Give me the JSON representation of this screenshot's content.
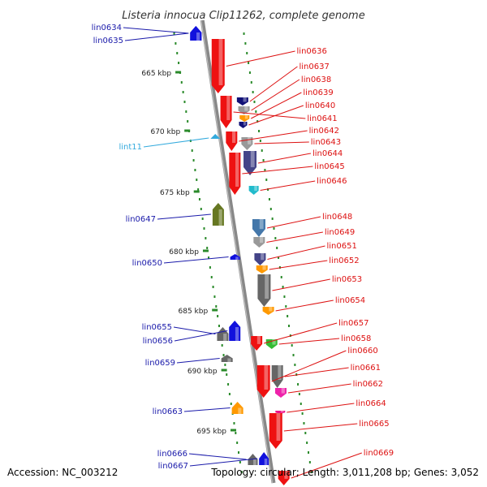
{
  "header": {
    "title": "Listeria innocua Clip11262, complete genome"
  },
  "footer": {
    "accession": "Accession: NC_003212",
    "summary": "Topology: circular; Length: 3,011,208 bp; Genes: 3,052"
  },
  "ticks": [
    "665 kbp",
    "670 kbp",
    "675 kbp",
    "680 kbp",
    "685 kbp",
    "690 kbp",
    "695 kbp"
  ],
  "colors": {
    "forward_label": "#1a1aaa",
    "reverse_label": "#dd1111",
    "rna_label": "#33aadd",
    "backbone": "#888888",
    "tick_mark": "#2a8a2a"
  },
  "genes_forward": [
    {
      "label": "lin0634",
      "color": "#1111dd"
    },
    {
      "label": "lin0635",
      "color": "#1111dd"
    },
    {
      "label": "lin0647",
      "color": "#667722"
    },
    {
      "label": "lin0650",
      "color": "#1111dd"
    },
    {
      "label": "lin0655",
      "color": "#666666"
    },
    {
      "label": "lin0656",
      "color": "#1111dd"
    },
    {
      "label": "lin0659",
      "color": "#666666"
    },
    {
      "label": "lin0663",
      "color": "#ff9900"
    },
    {
      "label": "lin0666",
      "color": "#666666"
    },
    {
      "label": "lin0667",
      "color": "#1111dd"
    }
  ],
  "genes_rna": [
    {
      "label": "lint11",
      "color": "#33aadd"
    }
  ],
  "genes_reverse": [
    {
      "label": "lin0636",
      "color": "#ee1111"
    },
    {
      "label": "lin0637",
      "color": "#111177"
    },
    {
      "label": "lin0638",
      "color": "#999999"
    },
    {
      "label": "lin0639",
      "color": "#ff9900"
    },
    {
      "label": "lin0640",
      "color": "#111177"
    },
    {
      "label": "lin0641",
      "color": "#ee1111"
    },
    {
      "label": "lin0642",
      "color": "#ee1111"
    },
    {
      "label": "lin0643",
      "color": "#999999"
    },
    {
      "label": "lin0644",
      "color": "#444488"
    },
    {
      "label": "lin0645",
      "color": "#ee1111"
    },
    {
      "label": "lin0646",
      "color": "#22bbcc"
    },
    {
      "label": "lin0648",
      "color": "#4477aa"
    },
    {
      "label": "lin0649",
      "color": "#999999"
    },
    {
      "label": "lin0651",
      "color": "#444488"
    },
    {
      "label": "lin0652",
      "color": "#ff9900"
    },
    {
      "label": "lin0653",
      "color": "#666666"
    },
    {
      "label": "lin0654",
      "color": "#ff9900"
    },
    {
      "label": "lin0657",
      "color": "#ee1111"
    },
    {
      "label": "lin0658",
      "color": "#33bb33"
    },
    {
      "label": "lin0660",
      "color": "#ee1111"
    },
    {
      "label": "lin0661",
      "color": "#666666"
    },
    {
      "label": "lin0662",
      "color": "#ee22aa"
    },
    {
      "label": "lin0664",
      "color": "#ee1188"
    },
    {
      "label": "lin0665",
      "color": "#ee1111"
    },
    {
      "label": "lin0669",
      "color": "#ee1111"
    }
  ]
}
